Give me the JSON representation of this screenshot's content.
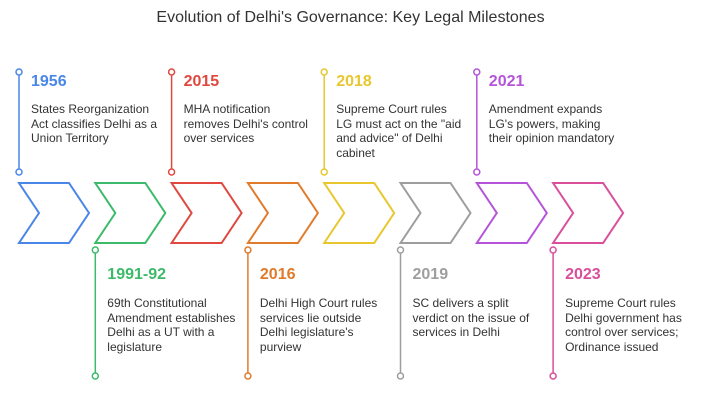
{
  "title": "Evolution of Delhi's Governance: Key Legal Milestones",
  "milestones": [
    {
      "year": "1956",
      "color": "#4a86e8",
      "position": "top",
      "description": "States Reorganization Act classifies Delhi as a Union Territory"
    },
    {
      "year": "1991-92",
      "color": "#3cba6a",
      "position": "bottom",
      "description": "69th Constitutional Amendment establishes Delhi as a UT with a legislature"
    },
    {
      "year": "2015",
      "color": "#e0483f",
      "position": "top",
      "description": "MHA notification removes Delhi's control over services"
    },
    {
      "year": "2016",
      "color": "#e07b2b",
      "position": "bottom",
      "description": "Delhi High Court rules services lie outside Delhi legislature's purview"
    },
    {
      "year": "2018",
      "color": "#e8c72e",
      "position": "top",
      "description": "Supreme Court rules LG must act on the \"aid and advice\" of Delhi cabinet"
    },
    {
      "year": "2019",
      "color": "#9e9e9e",
      "position": "bottom",
      "description": "SC delivers a split verdict on the issue of services in Delhi"
    },
    {
      "year": "2021",
      "color": "#b554d9",
      "position": "top",
      "description": "Amendment expands LG's powers, making their opinion mandatory"
    },
    {
      "year": "2023",
      "color": "#d94f9b",
      "position": "bottom",
      "description": "Supreme Court rules Delhi government has control over services; Ordinance issued"
    }
  ]
}
